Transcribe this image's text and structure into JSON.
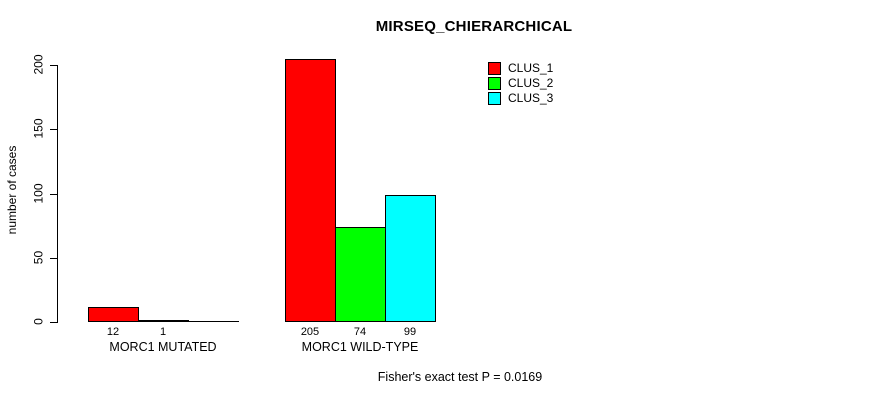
{
  "chart_data": {
    "type": "bar",
    "title": "MIRSEQ_CHIERARCHICAL",
    "xlabel": "",
    "ylabel": "number of cases",
    "ylim": [
      0,
      200
    ],
    "yticks": [
      0,
      50,
      100,
      150,
      200
    ],
    "categories": [
      "MORC1 MUTATED",
      "MORC1 WILD-TYPE"
    ],
    "series": [
      {
        "name": "CLUS_1",
        "color": "#ff0000",
        "values": [
          12,
          205
        ]
      },
      {
        "name": "CLUS_2",
        "color": "#00ff00",
        "values": [
          1,
          74
        ]
      },
      {
        "name": "CLUS_3",
        "color": "#00ffff",
        "values": [
          0,
          99
        ]
      }
    ],
    "bar_value_labels": [
      [
        "12",
        "1",
        ""
      ],
      [
        "205",
        "74",
        "99"
      ]
    ],
    "legend": {
      "position": "top-right",
      "entries": [
        "CLUS_1",
        "CLUS_2",
        "CLUS_3"
      ]
    },
    "annotation": "Fisher's exact test P = 0.0169",
    "grid": false,
    "bar_border_color": "#000000",
    "axis_color": "#000000",
    "background_color": "#ffffff"
  }
}
